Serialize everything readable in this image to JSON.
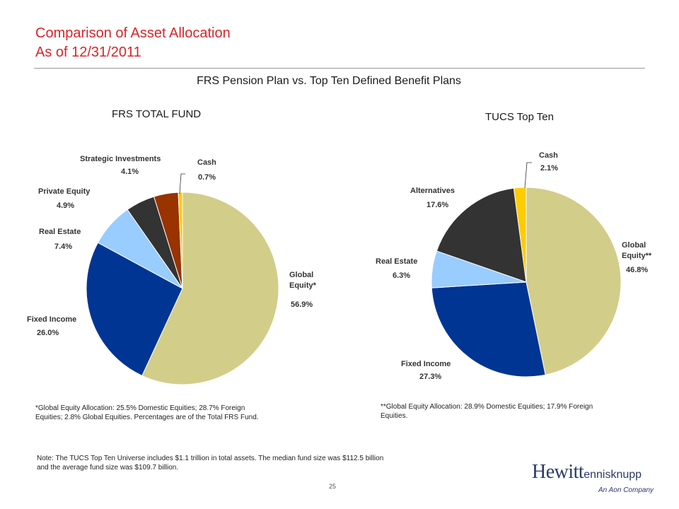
{
  "header": {
    "title_line1": "Comparison of Asset Allocation",
    "title_line2": "As of 12/31/2011",
    "subtitle": "FRS Pension Plan vs. Top Ten Defined Benefit Plans"
  },
  "chart_data": [
    {
      "type": "pie",
      "title": "FRS TOTAL FUND",
      "categories": [
        "Global Equity*",
        "Fixed Income",
        "Real Estate",
        "Private Equity",
        "Strategic Investments",
        "Cash"
      ],
      "values": [
        56.9,
        26.0,
        7.4,
        4.9,
        4.1,
        0.7
      ],
      "value_labels": [
        "56.9%",
        "26.0%",
        "7.4%",
        "4.9%",
        "4.1%",
        "0.7%"
      ],
      "colors": [
        "#d3cd8a",
        "#003594",
        "#99ccff",
        "#333333",
        "#993300",
        "#ffcc00"
      ],
      "labels": [
        {
          "lines": [
            "Global",
            "Equity*"
          ],
          "value": "56.9%"
        },
        {
          "lines": [
            "Fixed Income"
          ],
          "value": "26.0%"
        },
        {
          "lines": [
            "Real Estate"
          ],
          "value": "7.4%"
        },
        {
          "lines": [
            "Private Equity"
          ],
          "value": "4.9%"
        },
        {
          "lines": [
            "Strategic Investments"
          ],
          "value": "4.1%"
        },
        {
          "lines": [
            "Cash"
          ],
          "value": "0.7%"
        }
      ]
    },
    {
      "type": "pie",
      "title": "TUCS Top Ten",
      "categories": [
        "Global Equity**",
        "Fixed Income",
        "Real Estate",
        "Alternatives",
        "Cash"
      ],
      "values": [
        46.8,
        27.3,
        6.3,
        17.6,
        2.1
      ],
      "value_labels": [
        "46.8%",
        "27.3%",
        "6.3%",
        "17.6%",
        "2.1%"
      ],
      "colors": [
        "#d3cd8a",
        "#003594",
        "#99ccff",
        "#333333",
        "#ffcc00"
      ],
      "labels": [
        {
          "lines": [
            "Global",
            "Equity**"
          ],
          "value": "46.8%"
        },
        {
          "lines": [
            "Fixed Income"
          ],
          "value": "27.3%"
        },
        {
          "lines": [
            "Real Estate"
          ],
          "value": "6.3%"
        },
        {
          "lines": [
            "Alternatives"
          ],
          "value": "17.6%"
        },
        {
          "lines": [
            "Cash"
          ],
          "value": "2.1%"
        }
      ]
    }
  ],
  "footnotes": {
    "frs_line1": "*Global Equity Allocation: 25.5% Domestic Equities; 28.7% Foreign",
    "frs_line2": "Equities; 2.8% Global Equities. Percentages are of the Total FRS Fund.",
    "tucs_line1": "**Global Equity Allocation: 28.9% Domestic Equities; 17.9% Foreign",
    "tucs_line2": "Equities.",
    "note_line1": "Note: The TUCS Top Ten Universe includes $1.1 trillion in total assets. The median fund size was $112.5 billion",
    "note_line2": "and the average fund size was $109.7 billion."
  },
  "logo": {
    "brand": "Hewitt",
    "brand_suffix": "ennisknupp",
    "tagline": "An Aon Company"
  },
  "page_number": "25"
}
